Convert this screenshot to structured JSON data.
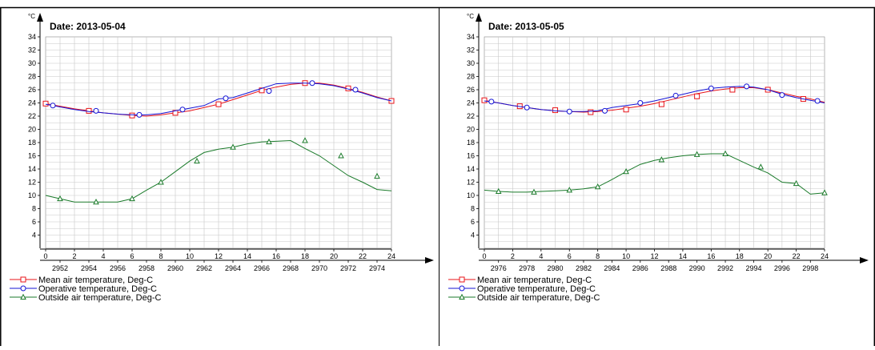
{
  "colors": {
    "mean": "#e8141a",
    "operative": "#1515d6",
    "outside": "#1a7a2a",
    "grid": "#c8c8c8",
    "border": "#000000"
  },
  "chart_data": [
    {
      "type": "line",
      "title": "Date: 2013-05-04",
      "ylabel": "°C",
      "ylim": [
        4,
        34
      ],
      "yticks": [
        "34",
        "32",
        "30",
        "28",
        "26",
        "24",
        "22",
        "20",
        "18",
        "16",
        "14",
        "12",
        "10",
        "8",
        "6",
        "4"
      ],
      "xlim": [
        0,
        24
      ],
      "xticks_hours": [
        "0",
        "2",
        "4",
        "6",
        "8",
        "10",
        "12",
        "14",
        "16",
        "18",
        "20",
        "22",
        "24"
      ],
      "xticks_secondary": [
        "2952",
        "2954",
        "2956",
        "2958",
        "2960",
        "2962",
        "2964",
        "2966",
        "2968",
        "2970",
        "2972",
        "2974"
      ],
      "grid": true,
      "legend_position": "bottom-left",
      "series": [
        {
          "name": "Mean air temperature, Deg-C",
          "marker": "square",
          "x": [
            0,
            1,
            2,
            3,
            4,
            5,
            6,
            7,
            8,
            9,
            10,
            11,
            12,
            13,
            14,
            15,
            16,
            17,
            18,
            19,
            20,
            21,
            22,
            23,
            24
          ],
          "y": [
            23.9,
            23.5,
            23.1,
            22.8,
            22.5,
            22.3,
            22.1,
            22.0,
            22.2,
            22.5,
            22.8,
            23.3,
            23.8,
            24.5,
            25.2,
            25.9,
            26.4,
            26.8,
            27.0,
            27.0,
            26.7,
            26.2,
            25.6,
            24.9,
            24.3
          ],
          "markers_x": [
            0,
            3,
            6,
            9,
            12,
            15,
            18,
            21,
            24
          ],
          "markers_y": [
            23.9,
            22.8,
            22.1,
            22.5,
            23.8,
            25.9,
            27.0,
            26.2,
            24.3
          ]
        },
        {
          "name": "Operative temperature, Deg-C",
          "marker": "circle",
          "x": [
            0,
            1,
            2,
            3,
            4,
            5,
            6,
            7,
            8,
            9,
            10,
            11,
            12,
            13,
            14,
            15,
            16,
            17,
            18,
            19,
            20,
            21,
            22,
            23,
            24
          ],
          "y": [
            23.8,
            23.4,
            23.0,
            22.7,
            22.5,
            22.3,
            22.2,
            22.2,
            22.4,
            22.8,
            23.2,
            23.6,
            24.6,
            24.8,
            25.5,
            26.2,
            26.9,
            27.0,
            27.0,
            26.9,
            26.6,
            26.1,
            25.5,
            24.8,
            24.3
          ],
          "markers_x": [
            0.5,
            3.5,
            6.5,
            9.5,
            12.5,
            15.5,
            18.5,
            21.5
          ],
          "markers_y": [
            23.6,
            22.8,
            22.2,
            23.0,
            24.7,
            25.8,
            27.0,
            26.0
          ]
        },
        {
          "name": "Outside air temperature, Deg-C",
          "marker": "triangle",
          "x": [
            0,
            1,
            2,
            3,
            4,
            5,
            6,
            7,
            8,
            9,
            10,
            11,
            12,
            13,
            14,
            15,
            16,
            17,
            18,
            19,
            20,
            21,
            22,
            23,
            24
          ],
          "y": [
            10.0,
            9.5,
            9.0,
            9.0,
            9.0,
            9.0,
            9.5,
            10.8,
            12.0,
            13.6,
            15.2,
            16.5,
            17.0,
            17.3,
            17.8,
            18.1,
            18.2,
            18.3,
            17.1,
            16.0,
            14.5,
            13.0,
            12.0,
            10.9,
            10.7
          ],
          "markers_x": [
            1,
            3.5,
            6,
            8,
            10.5,
            13,
            15.5,
            18,
            20.5,
            23
          ],
          "markers_y": [
            9.5,
            9.0,
            9.5,
            12.0,
            15.2,
            17.3,
            18.1,
            18.3,
            16.0,
            12.9
          ]
        }
      ]
    },
    {
      "type": "line",
      "title": "Date: 2013-05-05",
      "ylabel": "°C",
      "ylim": [
        4,
        34
      ],
      "yticks": [
        "34",
        "32",
        "30",
        "28",
        "26",
        "24",
        "22",
        "20",
        "18",
        "16",
        "14",
        "12",
        "10",
        "8",
        "6",
        "4"
      ],
      "xlim": [
        0,
        24
      ],
      "xticks_hours": [
        "0",
        "2",
        "4",
        "6",
        "8",
        "10",
        "12",
        "14",
        "16",
        "18",
        "20",
        "22",
        "24"
      ],
      "xticks_secondary": [
        "2976",
        "2978",
        "2980",
        "2982",
        "2984",
        "2986",
        "2988",
        "2990",
        "2992",
        "2994",
        "2996",
        "2998"
      ],
      "grid": true,
      "legend_position": "bottom-left",
      "series": [
        {
          "name": "Mean air temperature, Deg-C",
          "marker": "square",
          "x": [
            0,
            1,
            2,
            3,
            4,
            5,
            6,
            7,
            8,
            9,
            10,
            11,
            12,
            13,
            14,
            15,
            16,
            17,
            18,
            19,
            20,
            21,
            22,
            23,
            24
          ],
          "y": [
            24.4,
            24.0,
            23.6,
            23.3,
            23.0,
            22.8,
            22.7,
            22.6,
            22.7,
            22.9,
            23.2,
            23.5,
            23.9,
            24.4,
            24.9,
            25.4,
            25.8,
            26.1,
            26.3,
            26.3,
            26.0,
            25.5,
            25.0,
            24.6,
            24.1
          ],
          "markers_x": [
            0,
            2.5,
            5,
            7.5,
            10,
            12.5,
            15,
            17.5,
            20,
            22.5
          ],
          "markers_y": [
            24.4,
            23.5,
            22.9,
            22.6,
            23.0,
            23.8,
            25.0,
            26.0,
            26.0,
            24.6
          ]
        },
        {
          "name": "Operative temperature, Deg-C",
          "marker": "circle",
          "x": [
            0,
            1,
            2,
            3,
            4,
            5,
            6,
            7,
            8,
            9,
            10,
            11,
            12,
            13,
            14,
            15,
            16,
            17,
            18,
            19,
            20,
            21,
            22,
            23,
            24
          ],
          "y": [
            24.3,
            24.0,
            23.6,
            23.3,
            23.0,
            22.8,
            22.7,
            22.7,
            22.8,
            23.3,
            23.6,
            23.9,
            24.3,
            24.8,
            25.3,
            25.8,
            26.2,
            26.4,
            26.5,
            26.4,
            26.0,
            25.3,
            24.8,
            24.4,
            24.0
          ],
          "markers_x": [
            0.5,
            3,
            6,
            8.5,
            11,
            13.5,
            16,
            18.5,
            21,
            23.5
          ],
          "markers_y": [
            24.2,
            23.3,
            22.7,
            22.8,
            24.0,
            25.1,
            26.2,
            26.5,
            25.2,
            24.3
          ]
        },
        {
          "name": "Outside air temperature, Deg-C",
          "marker": "triangle",
          "x": [
            0,
            1,
            2,
            3,
            4,
            5,
            6,
            7,
            8,
            9,
            10,
            11,
            12,
            13,
            14,
            15,
            16,
            17,
            18,
            19,
            20,
            21,
            22,
            23,
            24
          ],
          "y": [
            10.8,
            10.6,
            10.5,
            10.5,
            10.6,
            10.7,
            10.8,
            11.0,
            11.3,
            12.4,
            13.6,
            14.7,
            15.3,
            15.7,
            16.0,
            16.2,
            16.3,
            16.3,
            15.3,
            14.3,
            13.4,
            12.0,
            11.8,
            10.2,
            10.4
          ],
          "markers_x": [
            1,
            3.5,
            6,
            8,
            10,
            12.5,
            15,
            17,
            19.5,
            22,
            24
          ],
          "markers_y": [
            10.6,
            10.5,
            10.8,
            11.3,
            13.6,
            15.4,
            16.2,
            16.3,
            14.3,
            11.8,
            10.4
          ]
        }
      ]
    }
  ]
}
